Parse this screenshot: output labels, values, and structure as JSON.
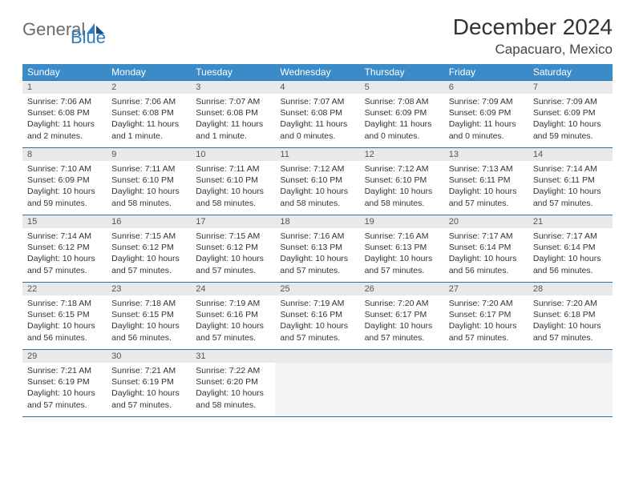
{
  "logo": {
    "text1": "General",
    "text2": "Blue"
  },
  "title": "December 2024",
  "location": "Capacuaro, Mexico",
  "colors": {
    "header_bg": "#3b8bc8",
    "header_text": "#ffffff",
    "daynum_bg": "#e7e9eb",
    "border": "#2f6ea3",
    "logo_gray": "#6c6c6c",
    "logo_blue": "#2f7bbf"
  },
  "dow": [
    "Sunday",
    "Monday",
    "Tuesday",
    "Wednesday",
    "Thursday",
    "Friday",
    "Saturday"
  ],
  "weeks": [
    [
      {
        "n": "1",
        "sr": "Sunrise: 7:06 AM",
        "ss": "Sunset: 6:08 PM",
        "d1": "Daylight: 11 hours",
        "d2": "and 2 minutes."
      },
      {
        "n": "2",
        "sr": "Sunrise: 7:06 AM",
        "ss": "Sunset: 6:08 PM",
        "d1": "Daylight: 11 hours",
        "d2": "and 1 minute."
      },
      {
        "n": "3",
        "sr": "Sunrise: 7:07 AM",
        "ss": "Sunset: 6:08 PM",
        "d1": "Daylight: 11 hours",
        "d2": "and 1 minute."
      },
      {
        "n": "4",
        "sr": "Sunrise: 7:07 AM",
        "ss": "Sunset: 6:08 PM",
        "d1": "Daylight: 11 hours",
        "d2": "and 0 minutes."
      },
      {
        "n": "5",
        "sr": "Sunrise: 7:08 AM",
        "ss": "Sunset: 6:09 PM",
        "d1": "Daylight: 11 hours",
        "d2": "and 0 minutes."
      },
      {
        "n": "6",
        "sr": "Sunrise: 7:09 AM",
        "ss": "Sunset: 6:09 PM",
        "d1": "Daylight: 11 hours",
        "d2": "and 0 minutes."
      },
      {
        "n": "7",
        "sr": "Sunrise: 7:09 AM",
        "ss": "Sunset: 6:09 PM",
        "d1": "Daylight: 10 hours",
        "d2": "and 59 minutes."
      }
    ],
    [
      {
        "n": "8",
        "sr": "Sunrise: 7:10 AM",
        "ss": "Sunset: 6:09 PM",
        "d1": "Daylight: 10 hours",
        "d2": "and 59 minutes."
      },
      {
        "n": "9",
        "sr": "Sunrise: 7:11 AM",
        "ss": "Sunset: 6:10 PM",
        "d1": "Daylight: 10 hours",
        "d2": "and 58 minutes."
      },
      {
        "n": "10",
        "sr": "Sunrise: 7:11 AM",
        "ss": "Sunset: 6:10 PM",
        "d1": "Daylight: 10 hours",
        "d2": "and 58 minutes."
      },
      {
        "n": "11",
        "sr": "Sunrise: 7:12 AM",
        "ss": "Sunset: 6:10 PM",
        "d1": "Daylight: 10 hours",
        "d2": "and 58 minutes."
      },
      {
        "n": "12",
        "sr": "Sunrise: 7:12 AM",
        "ss": "Sunset: 6:10 PM",
        "d1": "Daylight: 10 hours",
        "d2": "and 58 minutes."
      },
      {
        "n": "13",
        "sr": "Sunrise: 7:13 AM",
        "ss": "Sunset: 6:11 PM",
        "d1": "Daylight: 10 hours",
        "d2": "and 57 minutes."
      },
      {
        "n": "14",
        "sr": "Sunrise: 7:14 AM",
        "ss": "Sunset: 6:11 PM",
        "d1": "Daylight: 10 hours",
        "d2": "and 57 minutes."
      }
    ],
    [
      {
        "n": "15",
        "sr": "Sunrise: 7:14 AM",
        "ss": "Sunset: 6:12 PM",
        "d1": "Daylight: 10 hours",
        "d2": "and 57 minutes."
      },
      {
        "n": "16",
        "sr": "Sunrise: 7:15 AM",
        "ss": "Sunset: 6:12 PM",
        "d1": "Daylight: 10 hours",
        "d2": "and 57 minutes."
      },
      {
        "n": "17",
        "sr": "Sunrise: 7:15 AM",
        "ss": "Sunset: 6:12 PM",
        "d1": "Daylight: 10 hours",
        "d2": "and 57 minutes."
      },
      {
        "n": "18",
        "sr": "Sunrise: 7:16 AM",
        "ss": "Sunset: 6:13 PM",
        "d1": "Daylight: 10 hours",
        "d2": "and 57 minutes."
      },
      {
        "n": "19",
        "sr": "Sunrise: 7:16 AM",
        "ss": "Sunset: 6:13 PM",
        "d1": "Daylight: 10 hours",
        "d2": "and 57 minutes."
      },
      {
        "n": "20",
        "sr": "Sunrise: 7:17 AM",
        "ss": "Sunset: 6:14 PM",
        "d1": "Daylight: 10 hours",
        "d2": "and 56 minutes."
      },
      {
        "n": "21",
        "sr": "Sunrise: 7:17 AM",
        "ss": "Sunset: 6:14 PM",
        "d1": "Daylight: 10 hours",
        "d2": "and 56 minutes."
      }
    ],
    [
      {
        "n": "22",
        "sr": "Sunrise: 7:18 AM",
        "ss": "Sunset: 6:15 PM",
        "d1": "Daylight: 10 hours",
        "d2": "and 56 minutes."
      },
      {
        "n": "23",
        "sr": "Sunrise: 7:18 AM",
        "ss": "Sunset: 6:15 PM",
        "d1": "Daylight: 10 hours",
        "d2": "and 56 minutes."
      },
      {
        "n": "24",
        "sr": "Sunrise: 7:19 AM",
        "ss": "Sunset: 6:16 PM",
        "d1": "Daylight: 10 hours",
        "d2": "and 57 minutes."
      },
      {
        "n": "25",
        "sr": "Sunrise: 7:19 AM",
        "ss": "Sunset: 6:16 PM",
        "d1": "Daylight: 10 hours",
        "d2": "and 57 minutes."
      },
      {
        "n": "26",
        "sr": "Sunrise: 7:20 AM",
        "ss": "Sunset: 6:17 PM",
        "d1": "Daylight: 10 hours",
        "d2": "and 57 minutes."
      },
      {
        "n": "27",
        "sr": "Sunrise: 7:20 AM",
        "ss": "Sunset: 6:17 PM",
        "d1": "Daylight: 10 hours",
        "d2": "and 57 minutes."
      },
      {
        "n": "28",
        "sr": "Sunrise: 7:20 AM",
        "ss": "Sunset: 6:18 PM",
        "d1": "Daylight: 10 hours",
        "d2": "and 57 minutes."
      }
    ],
    [
      {
        "n": "29",
        "sr": "Sunrise: 7:21 AM",
        "ss": "Sunset: 6:19 PM",
        "d1": "Daylight: 10 hours",
        "d2": "and 57 minutes."
      },
      {
        "n": "30",
        "sr": "Sunrise: 7:21 AM",
        "ss": "Sunset: 6:19 PM",
        "d1": "Daylight: 10 hours",
        "d2": "and 57 minutes."
      },
      {
        "n": "31",
        "sr": "Sunrise: 7:22 AM",
        "ss": "Sunset: 6:20 PM",
        "d1": "Daylight: 10 hours",
        "d2": "and 58 minutes."
      },
      null,
      null,
      null,
      null
    ]
  ]
}
